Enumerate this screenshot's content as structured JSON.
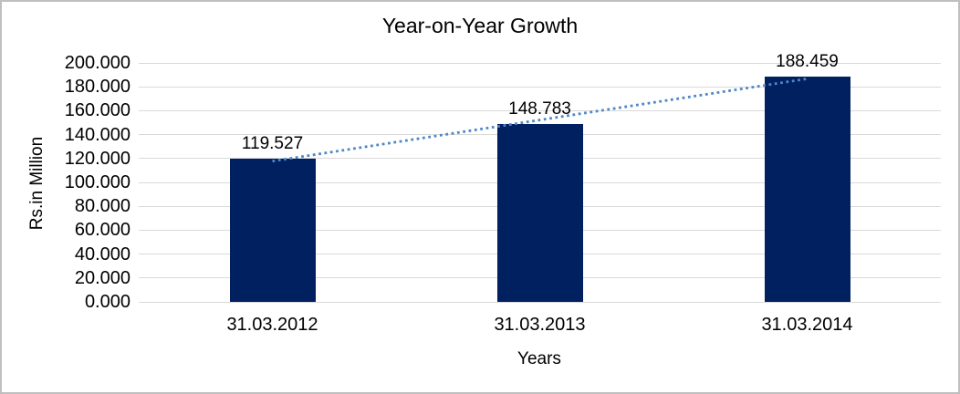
{
  "chart_data": {
    "type": "bar",
    "title": "Year-on-Year Growth",
    "xlabel": "Years",
    "ylabel": "Rs.in Million",
    "categories": [
      "31.03.2012",
      "31.03.2013",
      "31.03.2014"
    ],
    "values": [
      119.527,
      148.783,
      188.459
    ],
    "data_labels": [
      "119.527",
      "148.783",
      "188.459"
    ],
    "y_ticks": [
      "0.000",
      "20.000",
      "40.000",
      "60.000",
      "80.000",
      "100.000",
      "120.000",
      "140.000",
      "160.000",
      "180.000",
      "200.000"
    ],
    "ylim": [
      0,
      200
    ],
    "grid": true,
    "legend": "none",
    "bar_color": "#002060",
    "trendline": {
      "type": "linear",
      "style": "dotted",
      "color": "#4e87c8"
    },
    "gridline_color": "#d9d9d9",
    "frame_border_color": "#bfbfbf",
    "text_color": "#000000"
  }
}
